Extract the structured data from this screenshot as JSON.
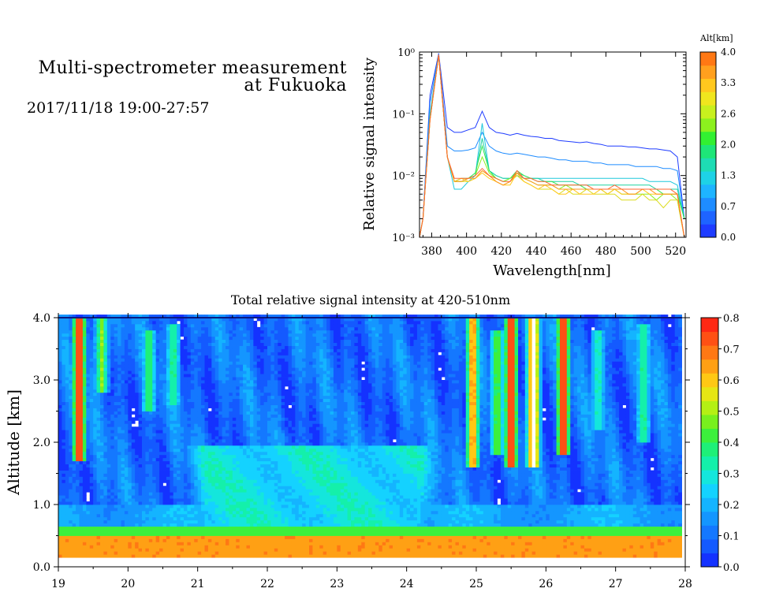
{
  "header": {
    "title_line1": "Multi-spectrometer measurement",
    "title_line2": "at Fukuoka",
    "datetime": "2017/11/18 19:00-27:57"
  },
  "chart_data": [
    {
      "type": "line",
      "ylabel": "Relative signal intensity",
      "xlabel": "Wavelength[nm]",
      "xlim": [
        373,
        526
      ],
      "ylim": [
        0.001,
        1
      ],
      "yscale": "log",
      "x_ticks": [
        "380",
        "400",
        "420",
        "440",
        "460",
        "480",
        "500",
        "520"
      ],
      "y_ticks": [
        "10⁻³",
        "10⁻²",
        "10⁻¹",
        "10⁰"
      ],
      "colorbar": {
        "label": "Alt[km]",
        "ticks": [
          "0.0",
          "0.7",
          "1.3",
          "2.0",
          "2.6",
          "3.3",
          "4.0"
        ],
        "colors": [
          "#1e3cff",
          "#1e64ff",
          "#1e8cff",
          "#1eb4ff",
          "#1ed2e6",
          "#1edcb4",
          "#1ee678",
          "#32f032",
          "#8cf01e",
          "#c8f01e",
          "#f0e61e",
          "#ffc81e",
          "#ffa01e",
          "#ff7814"
        ]
      },
      "x": [
        373,
        375,
        379,
        384,
        389,
        393,
        397,
        401,
        405,
        409,
        413,
        417,
        421,
        425,
        429,
        433,
        437,
        441,
        445,
        449,
        453,
        457,
        461,
        465,
        469,
        473,
        477,
        481,
        485,
        489,
        493,
        497,
        501,
        505,
        509,
        513,
        517,
        521,
        525
      ],
      "series": [
        {
          "color": "#1e3cff",
          "values": [
            0.001,
            0.002,
            0.2,
            0.95,
            0.06,
            0.05,
            0.05,
            0.055,
            0.06,
            0.11,
            0.06,
            0.05,
            0.048,
            0.045,
            0.048,
            0.045,
            0.043,
            0.042,
            0.04,
            0.04,
            0.037,
            0.036,
            0.035,
            0.034,
            0.035,
            0.033,
            0.032,
            0.03,
            0.03,
            0.03,
            0.029,
            0.029,
            0.028,
            0.027,
            0.027,
            0.026,
            0.025,
            0.02,
            0.002
          ]
        },
        {
          "color": "#1e8cff",
          "values": [
            0.001,
            0.002,
            0.15,
            0.92,
            0.03,
            0.025,
            0.025,
            0.026,
            0.028,
            0.05,
            0.03,
            0.025,
            0.023,
            0.022,
            0.023,
            0.022,
            0.021,
            0.02,
            0.02,
            0.019,
            0.018,
            0.018,
            0.017,
            0.017,
            0.017,
            0.016,
            0.016,
            0.015,
            0.015,
            0.015,
            0.015,
            0.014,
            0.014,
            0.014,
            0.014,
            0.013,
            0.013,
            0.012,
            0.002
          ]
        },
        {
          "color": "#1ec8dc",
          "values": [
            0.001,
            0.002,
            0.1,
            0.9,
            0.02,
            0.006,
            0.006,
            0.008,
            0.01,
            0.07,
            0.012,
            0.01,
            0.009,
            0.009,
            0.01,
            0.009,
            0.009,
            0.009,
            0.009,
            0.009,
            0.009,
            0.009,
            0.009,
            0.009,
            0.009,
            0.009,
            0.009,
            0.009,
            0.009,
            0.009,
            0.009,
            0.009,
            0.009,
            0.008,
            0.008,
            0.008,
            0.008,
            0.007,
            0.002
          ]
        },
        {
          "color": "#1ed2a0",
          "values": [
            0.001,
            0.002,
            0.09,
            0.88,
            0.02,
            0.008,
            0.008,
            0.009,
            0.01,
            0.04,
            0.012,
            0.01,
            0.009,
            0.009,
            0.011,
            0.01,
            0.009,
            0.009,
            0.008,
            0.008,
            0.008,
            0.008,
            0.008,
            0.007,
            0.007,
            0.007,
            0.007,
            0.007,
            0.007,
            0.007,
            0.007,
            0.007,
            0.007,
            0.007,
            0.006,
            0.006,
            0.006,
            0.006,
            0.002
          ]
        },
        {
          "color": "#32e650",
          "values": [
            0.001,
            0.002,
            0.08,
            0.88,
            0.02,
            0.008,
            0.009,
            0.009,
            0.011,
            0.03,
            0.012,
            0.009,
            0.008,
            0.009,
            0.012,
            0.01,
            0.009,
            0.008,
            0.008,
            0.008,
            0.007,
            0.007,
            0.007,
            0.007,
            0.006,
            0.006,
            0.006,
            0.006,
            0.006,
            0.006,
            0.006,
            0.006,
            0.006,
            0.006,
            0.006,
            0.005,
            0.005,
            0.005,
            0.002
          ]
        },
        {
          "color": "#8cf01e",
          "values": [
            0.001,
            0.002,
            0.08,
            0.9,
            0.02,
            0.008,
            0.008,
            0.009,
            0.01,
            0.02,
            0.011,
            0.009,
            0.008,
            0.009,
            0.011,
            0.009,
            0.008,
            0.007,
            0.007,
            0.007,
            0.006,
            0.007,
            0.006,
            0.006,
            0.006,
            0.006,
            0.006,
            0.005,
            0.006,
            0.005,
            0.005,
            0.005,
            0.005,
            0.005,
            0.004,
            0.005,
            0.005,
            0.004,
            0.001
          ]
        },
        {
          "color": "#dcdc1e",
          "values": [
            0.001,
            0.002,
            0.08,
            0.9,
            0.02,
            0.008,
            0.008,
            0.008,
            0.009,
            0.012,
            0.01,
            0.008,
            0.007,
            0.008,
            0.01,
            0.008,
            0.007,
            0.006,
            0.006,
            0.006,
            0.005,
            0.006,
            0.005,
            0.005,
            0.006,
            0.005,
            0.005,
            0.005,
            0.005,
            0.004,
            0.004,
            0.004,
            0.005,
            0.004,
            0.004,
            0.003,
            0.004,
            0.004,
            0.001
          ]
        },
        {
          "color": "#ffc81e",
          "values": [
            0.001,
            0.002,
            0.08,
            0.9,
            0.02,
            0.008,
            0.009,
            0.008,
            0.009,
            0.011,
            0.009,
            0.008,
            0.007,
            0.007,
            0.011,
            0.008,
            0.007,
            0.006,
            0.007,
            0.006,
            0.005,
            0.005,
            0.006,
            0.005,
            0.005,
            0.005,
            0.006,
            0.005,
            0.006,
            0.005,
            0.005,
            0.005,
            0.006,
            0.005,
            0.005,
            0.005,
            0.005,
            0.005,
            0.001
          ]
        },
        {
          "color": "#ff961e",
          "values": [
            0.001,
            0.002,
            0.08,
            0.9,
            0.02,
            0.008,
            0.008,
            0.009,
            0.009,
            0.012,
            0.01,
            0.008,
            0.007,
            0.008,
            0.011,
            0.009,
            0.008,
            0.007,
            0.007,
            0.007,
            0.006,
            0.006,
            0.006,
            0.006,
            0.006,
            0.006,
            0.006,
            0.006,
            0.006,
            0.006,
            0.005,
            0.005,
            0.006,
            0.006,
            0.005,
            0.005,
            0.005,
            0.005,
            0.001
          ]
        },
        {
          "color": "#ff6432",
          "values": [
            0.001,
            0.002,
            0.08,
            0.9,
            0.02,
            0.009,
            0.009,
            0.009,
            0.01,
            0.013,
            0.01,
            0.009,
            0.008,
            0.008,
            0.012,
            0.009,
            0.009,
            0.008,
            0.008,
            0.007,
            0.007,
            0.007,
            0.007,
            0.007,
            0.007,
            0.006,
            0.006,
            0.006,
            0.007,
            0.006,
            0.006,
            0.006,
            0.006,
            0.006,
            0.006,
            0.006,
            0.006,
            0.005,
            0.001
          ]
        }
      ]
    },
    {
      "type": "heatmap",
      "title": "Total relative signal intensity at 420-510nm",
      "ylabel": "Altitude [km]",
      "xlim": [
        19,
        28
      ],
      "ylim": [
        0,
        4
      ],
      "x_ticks": [
        "19",
        "20",
        "21",
        "22",
        "23",
        "24",
        "25",
        "26",
        "27",
        "28"
      ],
      "y_ticks": [
        "0.0",
        "1.0",
        "2.0",
        "3.0",
        "4.0"
      ],
      "data_end_hour": 27.95,
      "colorbar": {
        "ticks": [
          "0.0",
          "0.1",
          "0.2",
          "0.3",
          "0.4",
          "0.5",
          "0.6",
          "0.7",
          "0.8"
        ],
        "colors": [
          "#1432ff",
          "#145aff",
          "#1478ff",
          "#1496ff",
          "#14b4ff",
          "#14d2ff",
          "#14e6dc",
          "#14f0aa",
          "#1ef078",
          "#3cf03c",
          "#78f01e",
          "#b4f014",
          "#e6e614",
          "#ffc814",
          "#ffa014",
          "#ff7814",
          "#ff5014",
          "#ff2814"
        ]
      },
      "field": {
        "base_layers": [
          {
            "alt_min": 0.15,
            "alt_max": 0.5,
            "value": 0.65
          },
          {
            "alt_min": 0.5,
            "alt_max": 0.65,
            "value": 0.42
          },
          {
            "alt_min": 0.65,
            "alt_max": 1.0,
            "value": 0.2
          },
          {
            "alt_min": 1.0,
            "alt_max": 4.0,
            "value": 0.1
          }
        ],
        "aerosol_layer": {
          "t_start": 20.7,
          "t_end": 24.6,
          "alt_top": 1.95,
          "value": 0.27
        },
        "plumes": [
          {
            "t": 19.3,
            "alt_min": 1.7,
            "alt_max": 4.0,
            "value": 0.9
          },
          {
            "t": 19.62,
            "alt_min": 2.8,
            "alt_max": 4.0,
            "value": 0.5
          },
          {
            "t": 20.3,
            "alt_min": 2.5,
            "alt_max": 3.8,
            "value": 0.45
          },
          {
            "t": 20.65,
            "alt_min": 2.6,
            "alt_max": 3.9,
            "value": 0.4
          },
          {
            "t": 24.95,
            "alt_min": 1.6,
            "alt_max": 4.0,
            "value": 0.75
          },
          {
            "t": 25.3,
            "alt_min": 1.8,
            "alt_max": 3.8,
            "value": 0.5
          },
          {
            "t": 25.5,
            "alt_min": 1.6,
            "alt_max": 4.0,
            "value": 0.9
          },
          {
            "t": 25.82,
            "alt_min": 1.6,
            "alt_max": 4.0,
            "value": 0.9
          },
          {
            "t": 26.25,
            "alt_min": 1.8,
            "alt_max": 4.0,
            "value": 0.9
          },
          {
            "t": 26.75,
            "alt_min": 2.2,
            "alt_max": 3.8,
            "value": 0.35
          },
          {
            "t": 27.4,
            "alt_min": 2.0,
            "alt_max": 3.9,
            "value": 0.4
          }
        ]
      }
    }
  ]
}
